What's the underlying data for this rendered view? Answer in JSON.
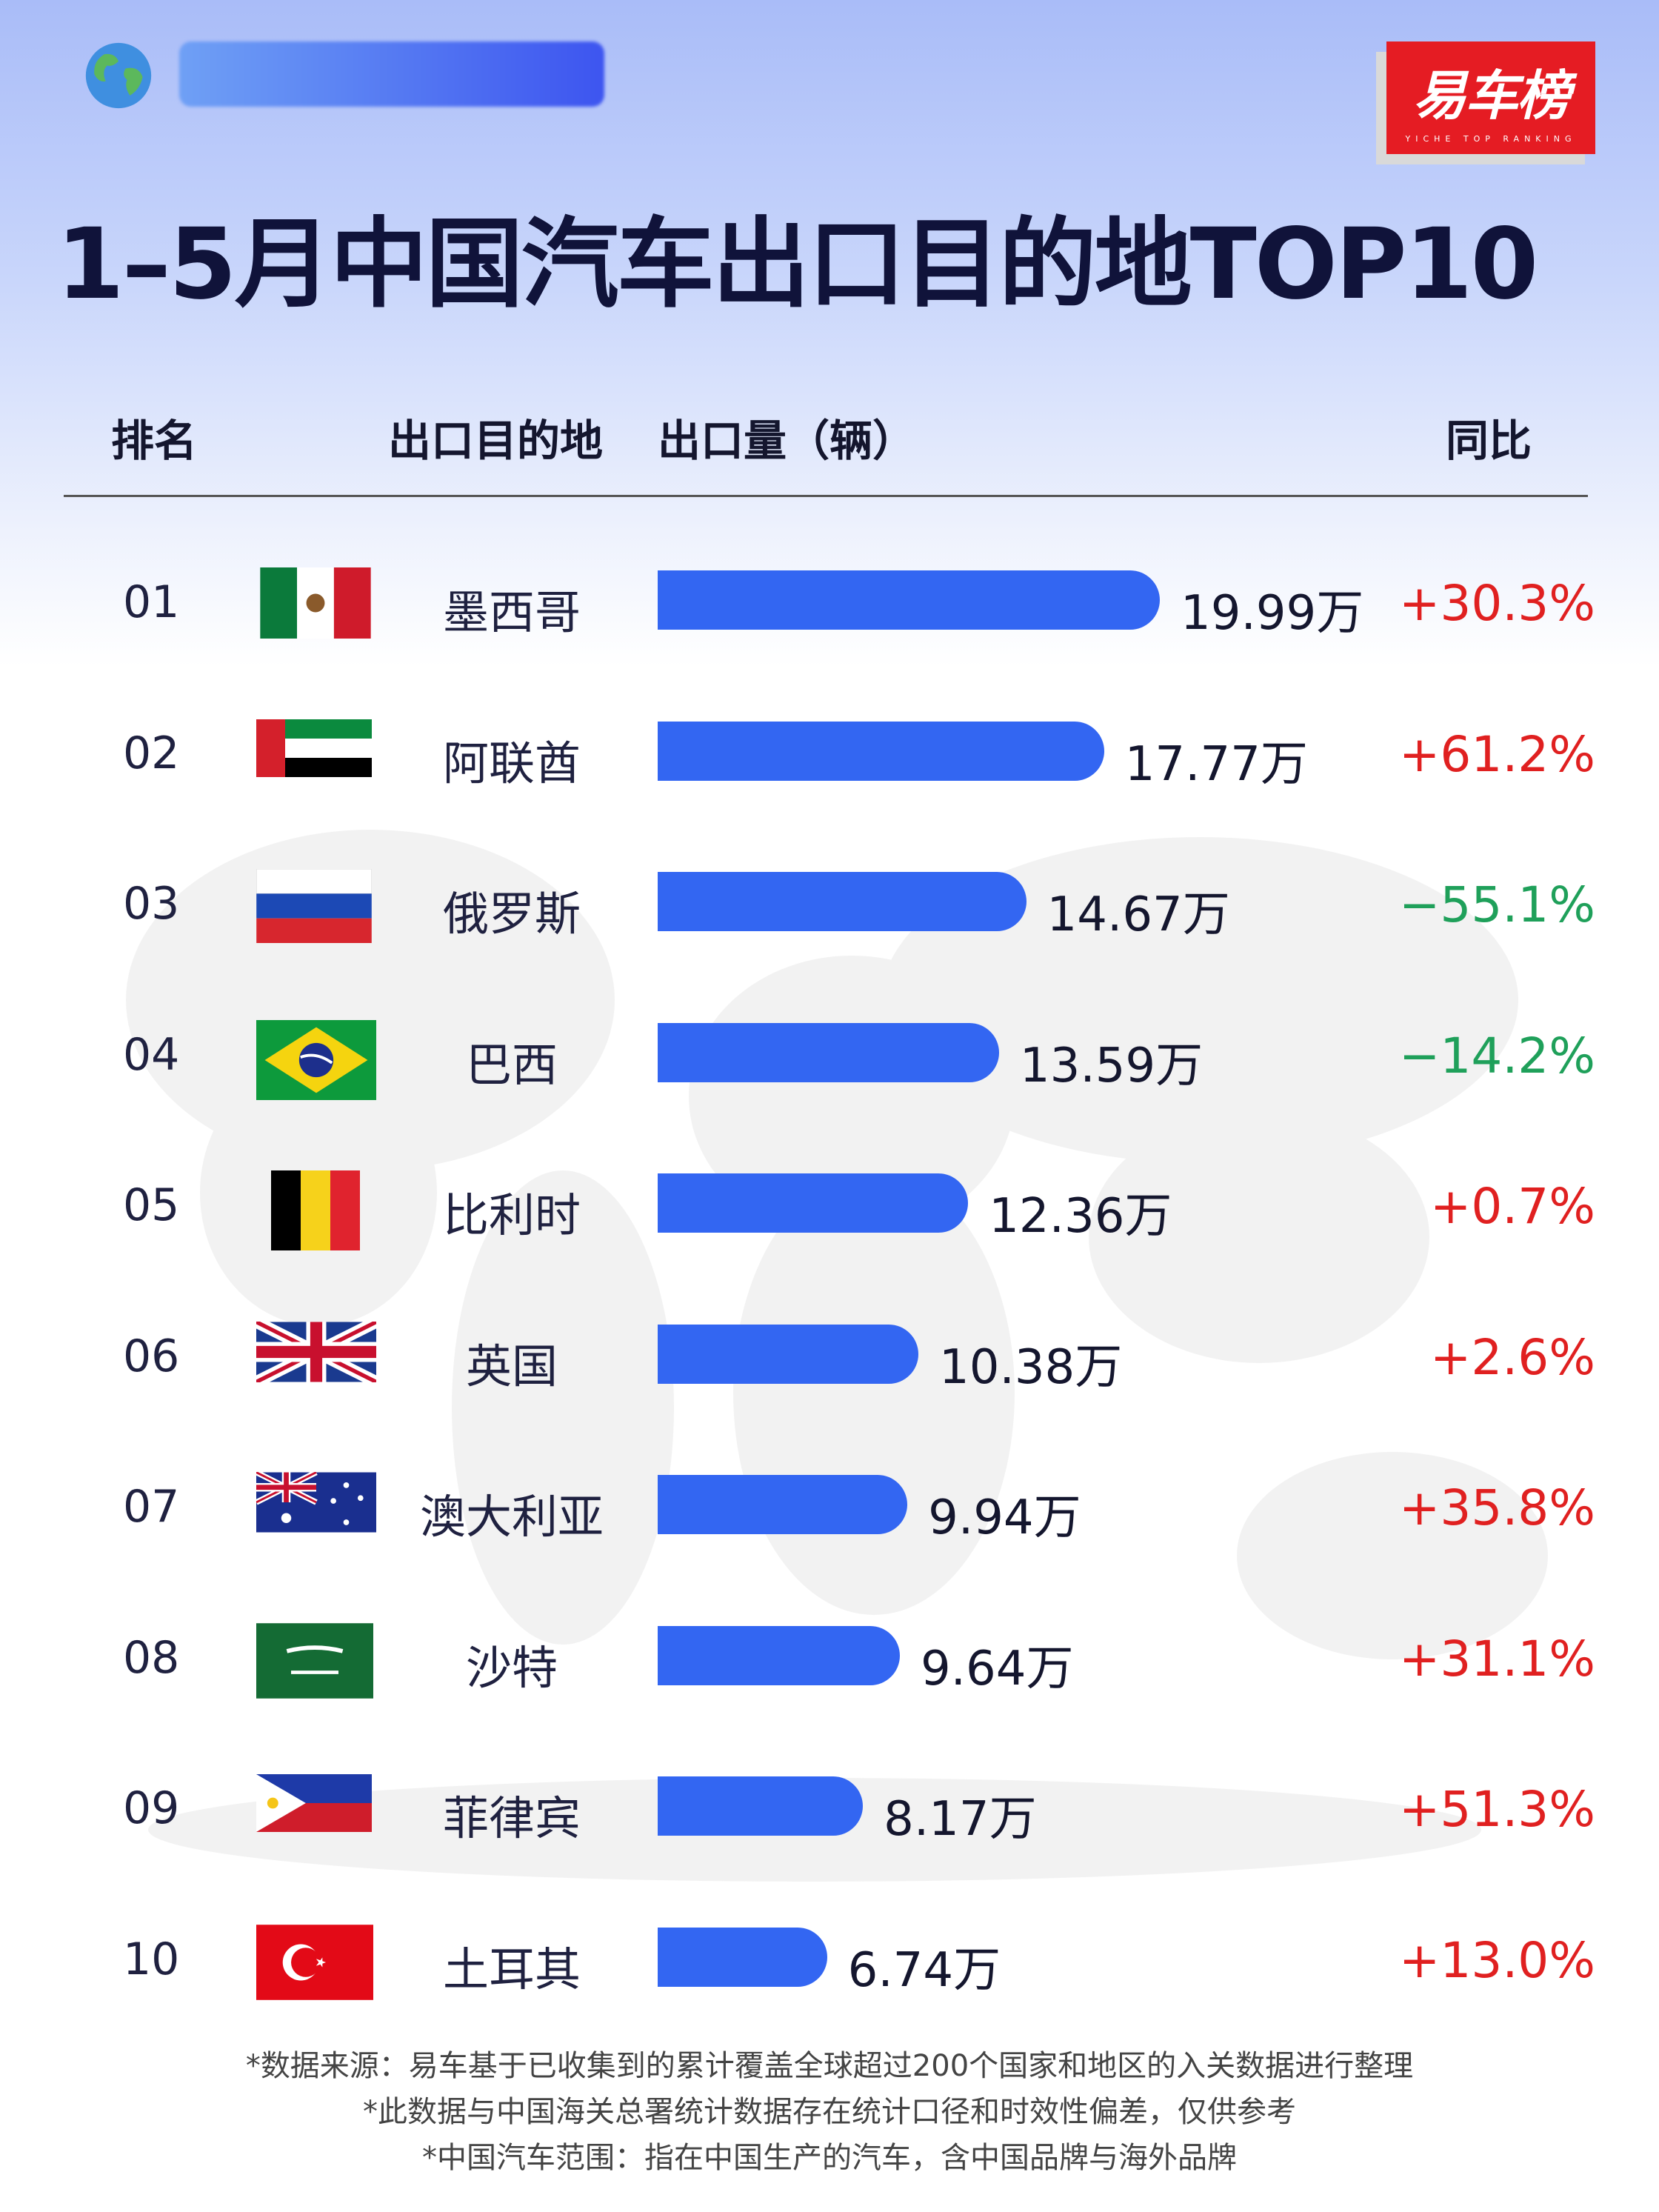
{
  "header": {
    "title": "1–5月中国汽车出口目的地TOP10",
    "brand": "易车榜",
    "brand_sub": "YICHE TOP RANKING"
  },
  "columns": {
    "rank": "排名",
    "dest": "出口目的地",
    "volume": "出口量（辆）",
    "yoy": "同比"
  },
  "colors": {
    "bar": "#3366f2",
    "positive": "#e02020",
    "negative": "#1fa05a",
    "brand": "#e51c23"
  },
  "chart_data": {
    "type": "bar",
    "title": "1–5月中国汽车出口目的地TOP10",
    "unit": "万",
    "categories": [
      "墨西哥",
      "阿联酋",
      "俄罗斯",
      "巴西",
      "比利时",
      "英国",
      "澳大利亚",
      "沙特",
      "菲律宾",
      "土耳其"
    ],
    "values": [
      19.99,
      17.77,
      14.67,
      13.59,
      12.36,
      10.38,
      9.94,
      9.64,
      8.17,
      6.74
    ],
    "yoy": [
      30.3,
      61.2,
      -55.1,
      -14.2,
      0.7,
      2.6,
      35.8,
      31.1,
      51.3,
      13.0
    ]
  },
  "rows": [
    {
      "rank": "01",
      "country": "墨西哥",
      "value_label": "19.99万",
      "yoy_label": "+30.3%",
      "flag": "mexico-flag-icon"
    },
    {
      "rank": "02",
      "country": "阿联酋",
      "value_label": "17.77万",
      "yoy_label": "+61.2%",
      "flag": "uae-flag-icon"
    },
    {
      "rank": "03",
      "country": "俄罗斯",
      "value_label": "14.67万",
      "yoy_label": "−55.1%",
      "flag": "russia-flag-icon"
    },
    {
      "rank": "04",
      "country": "巴西",
      "value_label": "13.59万",
      "yoy_label": "−14.2%",
      "flag": "brazil-flag-icon"
    },
    {
      "rank": "05",
      "country": "比利时",
      "value_label": "12.36万",
      "yoy_label": "+0.7%",
      "flag": "belgium-flag-icon"
    },
    {
      "rank": "06",
      "country": "英国",
      "value_label": "10.38万",
      "yoy_label": "+2.6%",
      "flag": "uk-flag-icon"
    },
    {
      "rank": "07",
      "country": "澳大利亚",
      "value_label": "9.94万",
      "yoy_label": "+35.8%",
      "flag": "australia-flag-icon"
    },
    {
      "rank": "08",
      "country": "沙特",
      "value_label": "9.64万",
      "yoy_label": "+31.1%",
      "flag": "saudi-flag-icon"
    },
    {
      "rank": "09",
      "country": "菲律宾",
      "value_label": "8.17万",
      "yoy_label": "+51.3%",
      "flag": "philippines-flag-icon"
    },
    {
      "rank": "10",
      "country": "土耳其",
      "value_label": "6.74万",
      "yoy_label": "+13.0%",
      "flag": "turkey-flag-icon"
    }
  ],
  "footer": {
    "line1": "*数据来源：易车基于已收集到的累计覆盖全球超过200个国家和地区的入关数据进行整理",
    "line2": "*此数据与中国海关总署统计数据存在统计口径和时效性偏差，仅供参考",
    "line3": "*中国汽车范围：指在中国生产的汽车，含中国品牌与海外品牌"
  }
}
